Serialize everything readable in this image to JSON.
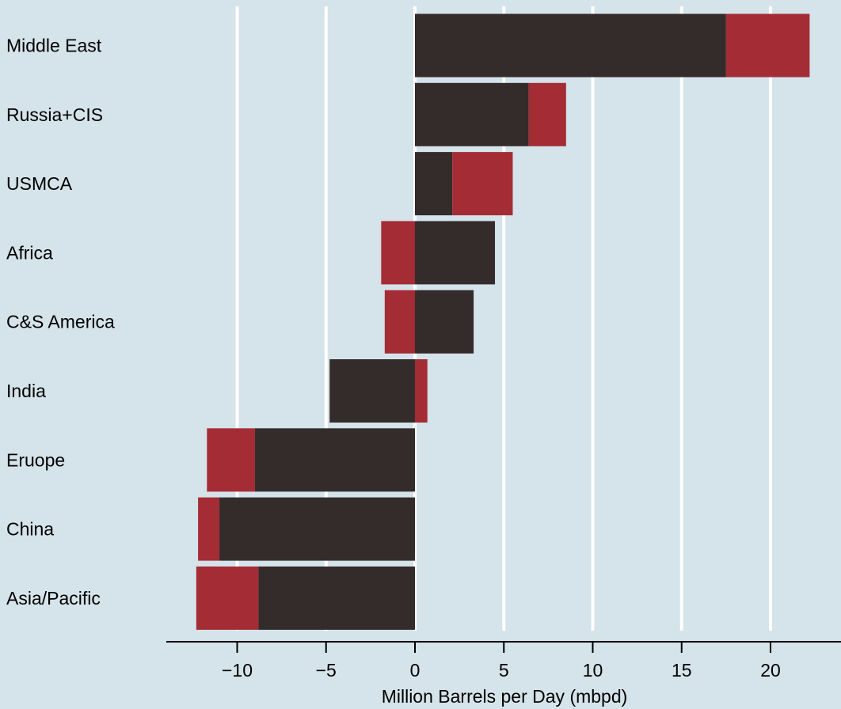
{
  "chart_data": {
    "type": "bar",
    "orientation": "horizontal",
    "stacked": true,
    "title": "",
    "xlabel": "Million Barrels per Day (mbpd)",
    "ylabel": "",
    "xlim": [
      -14,
      24
    ],
    "xticks": [
      -10,
      -5,
      0,
      5,
      10,
      15,
      20
    ],
    "xtick_labels": [
      "−10",
      "−5",
      "0",
      "5",
      "10",
      "15",
      "20"
    ],
    "grid": "vertical, white",
    "legend": "none",
    "categories": [
      "Middle East",
      "Russia+CIS",
      "USMCA",
      "Africa",
      "C&S America",
      "India",
      "Eruope",
      "China",
      "Asia/Pacific"
    ],
    "series": [
      {
        "color": "#332c2b",
        "values": [
          17.5,
          6.4,
          2.1,
          4.5,
          3.3,
          -4.8,
          -9.0,
          -11.0,
          -8.8
        ]
      },
      {
        "color": "#a42c35",
        "values": [
          4.7,
          2.1,
          3.4,
          -1.9,
          -1.7,
          0.7,
          -2.7,
          -1.2,
          -3.5
        ]
      }
    ]
  },
  "colors": {
    "background": "#d5e3ea",
    "grid": "#ffffff",
    "axis": "#000000"
  }
}
